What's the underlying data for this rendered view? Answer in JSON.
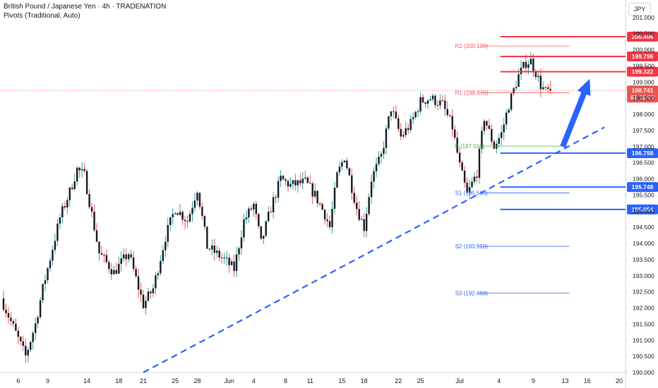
{
  "header": {
    "title": "British Pound / Japanese Yen · 4h · TRADENATION",
    "indicator": "Pivots (Traditional, Auto)",
    "currency": "JPY"
  },
  "colors": {
    "up": "#26a69a",
    "down": "#ef5350",
    "candle_body": "#131722",
    "resistance": "#f23645",
    "support": "#2962ff",
    "pivot_r": "#f7525f",
    "pivot_p": "#4caf50",
    "pivot_s": "#2962ff",
    "trendline": "#2962ff"
  },
  "chart_data": {
    "type": "candlestick",
    "symbol": "British Pound / Japanese Yen",
    "interval": "4h",
    "ylim": [
      190.0,
      201.5
    ],
    "y_ticks": [
      "190.000",
      "190.500",
      "191.000",
      "191.500",
      "192.000",
      "192.500",
      "193.000",
      "193.500",
      "194.000",
      "194.500",
      "195.000",
      "195.500",
      "196.000",
      "196.500",
      "197.000",
      "197.500",
      "198.000",
      "198.500",
      "199.000",
      "199.500",
      "200.000",
      "200.500",
      "201.000"
    ],
    "x_ticks": [
      "6",
      "9",
      "14",
      "18",
      "21",
      "25",
      "28",
      "Jun",
      "4",
      "8",
      "11",
      "15",
      "18",
      "22",
      "25",
      "Jul",
      "4",
      "9",
      "13",
      "16",
      "20"
    ],
    "x_tick_bars": [
      6,
      18,
      34,
      47,
      57,
      70,
      79,
      92,
      102,
      115,
      125,
      138,
      147,
      161,
      170,
      186,
      202,
      216,
      229,
      238,
      251
    ],
    "bar_count": 224,
    "current_price": {
      "value": 198.741,
      "label": "198.741",
      "countdown": "02:12:03"
    },
    "key_levels": {
      "resistance": [
        {
          "value": 200.406,
          "label": "200.406"
        },
        {
          "value": 199.796,
          "label": "199.796"
        },
        {
          "value": 199.322,
          "label": "199.322"
        }
      ],
      "support": [
        {
          "value": 196.798,
          "label": "196.798"
        },
        {
          "value": 195.748,
          "label": "195.748"
        },
        {
          "value": 195.054,
          "label": "195.054"
        }
      ]
    },
    "pivots": [
      {
        "label": "R2 (200.120)",
        "value": 200.12,
        "kind": "r"
      },
      {
        "label": "R1 (198.670)",
        "value": 198.67,
        "kind": "r"
      },
      {
        "label": "P (197.015)",
        "value": 197.015,
        "kind": "p"
      },
      {
        "label": "S1 (195.565)",
        "value": 195.565,
        "kind": "s"
      },
      {
        "label": "S2 (193.910)",
        "value": 193.91,
        "kind": "s"
      },
      {
        "label": "S3 (192.460)",
        "value": 192.46,
        "kind": "s"
      }
    ],
    "pivot_start_bar": 189,
    "pivot_end_bar": 229,
    "trendline": {
      "from": {
        "bar": 57,
        "price": 190.0
      },
      "to": {
        "bar": 245,
        "price": 197.6
      }
    },
    "projection_arrow": {
      "from": {
        "bar": 228,
        "price": 197.0
      },
      "to": {
        "bar": 239,
        "price": 199.1
      }
    },
    "path_points": [
      [
        0,
        192.3
      ],
      [
        5,
        191.4
      ],
      [
        10,
        190.5
      ],
      [
        14,
        191.5
      ],
      [
        17,
        192.6
      ],
      [
        24,
        194.8
      ],
      [
        28,
        195.6
      ],
      [
        31,
        196.3
      ],
      [
        34,
        196.1
      ],
      [
        40,
        193.7
      ],
      [
        46,
        193.1
      ],
      [
        52,
        193.7
      ],
      [
        58,
        192.1
      ],
      [
        62,
        192.6
      ],
      [
        67,
        194.2
      ],
      [
        71,
        195.1
      ],
      [
        76,
        194.7
      ],
      [
        80,
        195.7
      ],
      [
        84,
        193.9
      ],
      [
        91,
        193.5
      ],
      [
        95,
        193.2
      ],
      [
        99,
        194.7
      ],
      [
        103,
        195.2
      ],
      [
        106,
        194.0
      ],
      [
        110,
        195.1
      ],
      [
        114,
        196.0
      ],
      [
        118,
        195.8
      ],
      [
        124,
        195.9
      ],
      [
        128,
        195.5
      ],
      [
        132,
        194.9
      ],
      [
        134,
        194.5
      ],
      [
        137,
        196.1
      ],
      [
        140,
        196.7
      ],
      [
        145,
        195.1
      ],
      [
        148,
        194.5
      ],
      [
        151,
        196.0
      ],
      [
        155,
        196.7
      ],
      [
        159,
        198.2
      ],
      [
        163,
        197.3
      ],
      [
        167,
        197.7
      ],
      [
        171,
        198.4
      ],
      [
        175,
        198.5
      ],
      [
        180,
        198.3
      ],
      [
        184,
        197.6
      ],
      [
        187,
        196.4
      ],
      [
        190,
        195.5
      ],
      [
        194,
        196.2
      ],
      [
        197,
        197.9
      ],
      [
        201,
        197.0
      ],
      [
        204,
        197.4
      ],
      [
        207,
        198.3
      ],
      [
        211,
        199.2
      ],
      [
        214,
        199.6
      ],
      [
        216,
        199.65
      ],
      [
        218,
        199.3
      ],
      [
        220,
        198.9
      ],
      [
        222,
        198.7
      ],
      [
        224,
        198.74
      ]
    ]
  }
}
